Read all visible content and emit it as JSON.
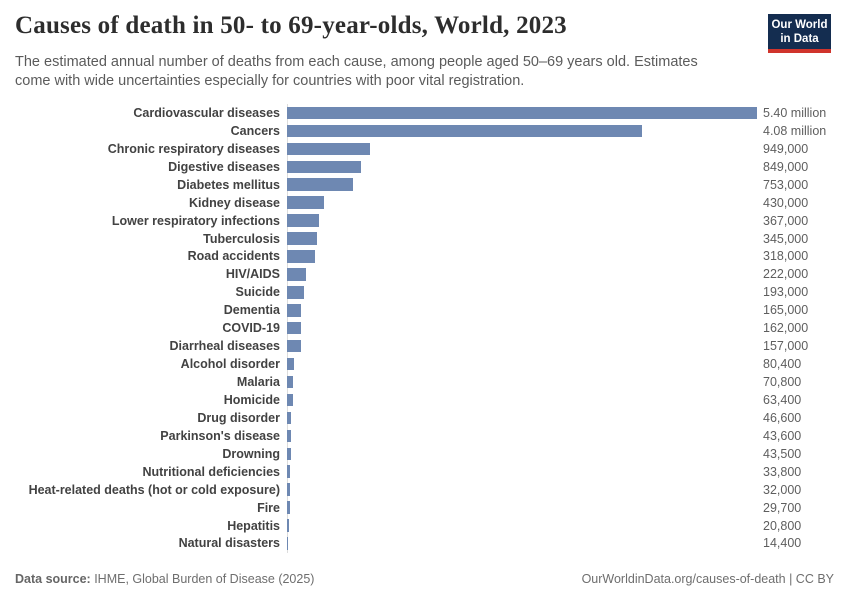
{
  "header": {
    "title": "Causes of death in 50- to 69-year-olds, World, 2023",
    "subtitle": "The estimated annual number of deaths from each cause, among people aged 50–69 years old. Estimates come with wide uncertainties especially for countries with poor vital registration.",
    "logo": {
      "line1": "Our World",
      "line2": "in Data"
    }
  },
  "chart_data": {
    "type": "bar",
    "orientation": "horizontal",
    "title": "Causes of death in 50- to 69-year-olds, World, 2023",
    "xlabel": "",
    "ylabel": "",
    "xlim": [
      0,
      5400000
    ],
    "grid": false,
    "legend": "none",
    "categories": [
      "Cardiovascular diseases",
      "Cancers",
      "Chronic respiratory diseases",
      "Digestive diseases",
      "Diabetes mellitus",
      "Kidney disease",
      "Lower respiratory infections",
      "Tuberculosis",
      "Road accidents",
      "HIV/AIDS",
      "Suicide",
      "Dementia",
      "COVID-19",
      "Diarrheal diseases",
      "Alcohol disorder",
      "Malaria",
      "Homicide",
      "Drug disorder",
      "Parkinson's disease",
      "Drowning",
      "Nutritional deficiencies",
      "Heat-related deaths (hot or cold exposure)",
      "Fire",
      "Hepatitis",
      "Natural disasters"
    ],
    "values": [
      5400000,
      4080000,
      949000,
      849000,
      753000,
      430000,
      367000,
      345000,
      318000,
      222000,
      193000,
      165000,
      162000,
      157000,
      80400,
      70800,
      63400,
      46600,
      43600,
      43500,
      33800,
      32000,
      29700,
      20800,
      14400
    ],
    "value_labels": [
      "5.40 million",
      "4.08 million",
      "949,000",
      "849,000",
      "753,000",
      "430,000",
      "367,000",
      "345,000",
      "318,000",
      "222,000",
      "193,000",
      "165,000",
      "162,000",
      "157,000",
      "80,400",
      "70,800",
      "63,400",
      "46,600",
      "43,600",
      "43,500",
      "33,800",
      "32,000",
      "29,700",
      "20,800",
      "14,400"
    ]
  },
  "footer": {
    "datasource_label": "Data source:",
    "datasource_value": " IHME, Global Burden of Disease (2025)",
    "credit": "OurWorldinData.org/causes-of-death | CC BY"
  },
  "colors": {
    "bar": "#6e88b2",
    "axis_line": "#dddddd",
    "logo_bg": "#142d50",
    "logo_red": "#d0342c"
  }
}
